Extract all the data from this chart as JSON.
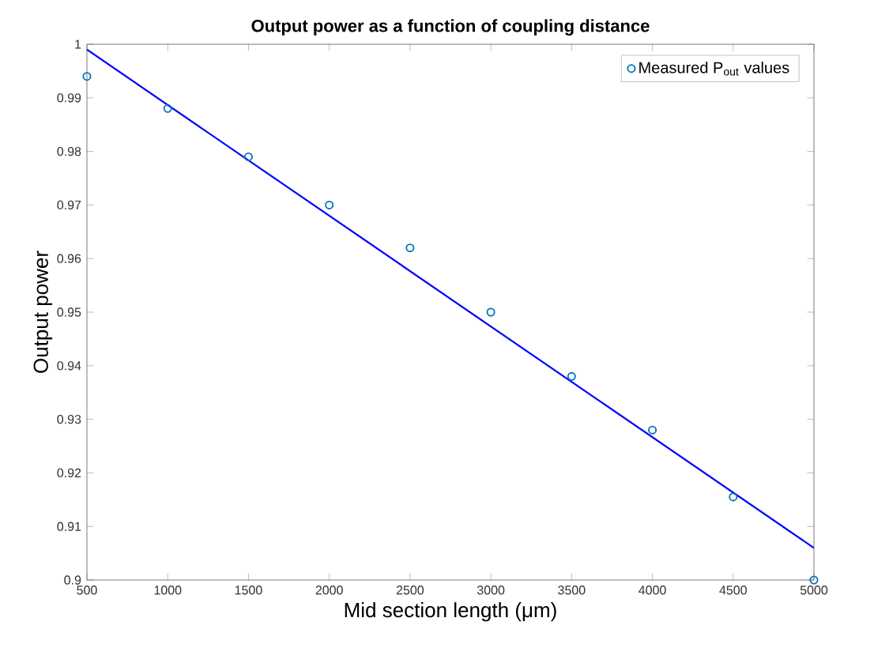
{
  "chart_data": {
    "type": "scatter",
    "title": "Output power as a function of coupling distance",
    "xlabel": "Mid section length (μm)",
    "ylabel": "Output power",
    "series": [
      {
        "name": "Measured P$_{out}$ values",
        "color": "#0072bd",
        "marker": "circle",
        "x": [
          500,
          1000,
          1500,
          2000,
          2500,
          3000,
          3500,
          4000,
          4500,
          5000
        ],
        "values": [
          0.994,
          0.988,
          0.979,
          0.97,
          0.962,
          0.95,
          0.938,
          0.928,
          0.9155,
          0.9
        ]
      },
      {
        "type": "line",
        "color": "#0000ff",
        "marker": "none",
        "line_style": "solid",
        "x": [
          500,
          5000
        ],
        "values": [
          0.999,
          0.906
        ]
      }
    ],
    "xlim": [
      500,
      5000
    ],
    "ylim": [
      0.9,
      1
    ],
    "xticks": [
      500,
      1000,
      1500,
      2000,
      2500,
      3000,
      3500,
      4000,
      4500,
      5000
    ],
    "yticks": [
      0.9,
      0.91,
      0.92,
      0.93,
      0.94,
      0.95,
      0.96,
      0.97,
      0.98,
      0.99,
      1
    ],
    "grid": false,
    "legend": "top right"
  }
}
